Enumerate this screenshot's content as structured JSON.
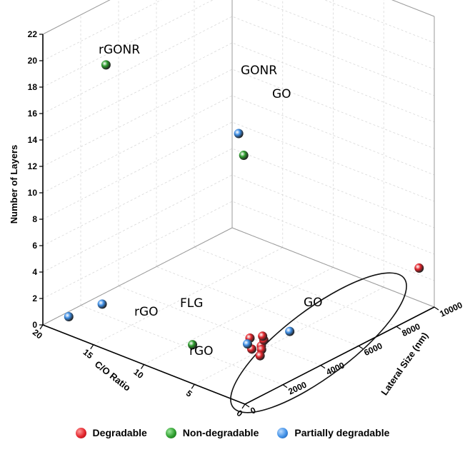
{
  "chart_data": {
    "type": "scatter",
    "title": "",
    "ylabel": "Number of Layers",
    "xlabel": "C/O Ratio",
    "zlabel": "Lateral Size (nm)",
    "yaxis": {
      "min": 0,
      "max": 22,
      "ticks": [
        "0",
        "2",
        "4",
        "6",
        "8",
        "10",
        "12",
        "14",
        "16",
        "18",
        "20",
        "22"
      ]
    },
    "xaxis": {
      "min": 0,
      "max": 20,
      "ticks": [
        "0",
        "5",
        "10",
        "15",
        "20"
      ]
    },
    "zaxis": {
      "min": 0,
      "max": 10000,
      "ticks": [
        "0",
        "2000",
        "4000",
        "6000",
        "8000",
        "10000"
      ]
    },
    "grid": true,
    "legend": {
      "position": "bottom",
      "items": [
        {
          "name": "Degradable",
          "color": "#e3242b"
        },
        {
          "name": "Non-degradable",
          "color": "#2e9e2e"
        },
        {
          "name": "Partially degradable",
          "color": "#3f8fe6"
        }
      ]
    },
    "annotations": [
      {
        "text": "rGONR"
      },
      {
        "text": "GONR"
      },
      {
        "text": "GO"
      },
      {
        "text": "rGO"
      },
      {
        "text": "FLG"
      },
      {
        "text": "rGO"
      },
      {
        "text": "GO"
      }
    ],
    "series": [
      {
        "name": "Degradable",
        "color": "#e3242b",
        "points": [
          {
            "co": 1.5,
            "size": 10000,
            "layers": 2.5
          },
          {
            "co": 4.0,
            "size": 3000,
            "layers": 1.0
          },
          {
            "co": 4.5,
            "size": 3400,
            "layers": 1.0
          },
          {
            "co": 5.0,
            "size": 3600,
            "layers": 1.0
          },
          {
            "co": 5.5,
            "size": 3200,
            "layers": 1.0
          },
          {
            "co": 4.2,
            "size": 2600,
            "layers": 1.0
          },
          {
            "co": 3.6,
            "size": 2800,
            "layers": 1.0
          },
          {
            "co": 3.0,
            "size": 2400,
            "layers": 1.0
          }
        ]
      },
      {
        "name": "Non-degradable",
        "color": "#2e9e2e",
        "points": [
          {
            "co": 16.0,
            "size": 1200,
            "layers": 20.0
          },
          {
            "co": 2.0,
            "size": 1000,
            "layers": 17.5
          },
          {
            "co": 8.0,
            "size": 1500,
            "layers": 1.0
          }
        ]
      },
      {
        "name": "Partially degradable",
        "color": "#3f8fe6",
        "points": [
          {
            "co": 2.5,
            "size": 1000,
            "layers": 19.0
          },
          {
            "co": 18.0,
            "size": 300,
            "layers": 1.0
          },
          {
            "co": 17.5,
            "size": 1800,
            "layers": 1.0
          },
          {
            "co": 4.0,
            "size": 4500,
            "layers": 1.0
          },
          {
            "co": 5.0,
            "size": 2800,
            "layers": 1.0
          }
        ]
      }
    ]
  }
}
